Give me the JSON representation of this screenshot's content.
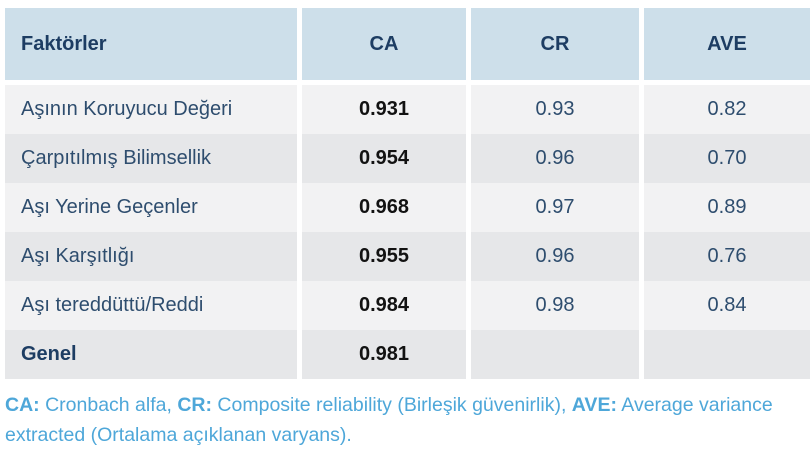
{
  "chart_data": {
    "type": "table",
    "columns": [
      "Faktörler",
      "CA",
      "CR",
      "AVE"
    ],
    "rows": [
      [
        "Aşının Koruyucu Değeri",
        "0.931",
        "0.93",
        "0.82"
      ],
      [
        "Çarpıtılmış Bilimsellik",
        "0.954",
        "0.96",
        "0.70"
      ],
      [
        "Aşı Yerine Geçenler",
        "0.968",
        "0.97",
        "0.89"
      ],
      [
        "Aşı Karşıtlığı",
        "0.955",
        "0.96",
        "0.76"
      ],
      [
        "Aşı tereddüttü/Reddi",
        "0.984",
        "0.98",
        "0.84"
      ],
      [
        "Genel",
        "0.981",
        "",
        ""
      ]
    ],
    "footnote": "CA: Cronbach alfa, CR: Composite reliability (Birleşik güvenirlik), AVE: Average variance extracted (Ortalama açıklanan varyans)."
  },
  "footnote": {
    "segments": [
      {
        "abbr": "CA:",
        "rest": " Cronbach alfa, "
      },
      {
        "abbr": "CR:",
        "rest": " Composite reliability (Birleşik güvenirlik), "
      },
      {
        "abbr": "AVE:",
        "rest": " Average variance extracted (Ortalama açıklanan varyans)."
      }
    ]
  },
  "style_colors": {
    "header_bg": "#cddfea",
    "header_text": "#1d3d63",
    "row_light": "#f2f2f3",
    "row_dark": "#e6e7e9",
    "factor_text": "#2e4d6e",
    "ca_text": "#121212",
    "footnote_text": "#4ea7d9"
  }
}
